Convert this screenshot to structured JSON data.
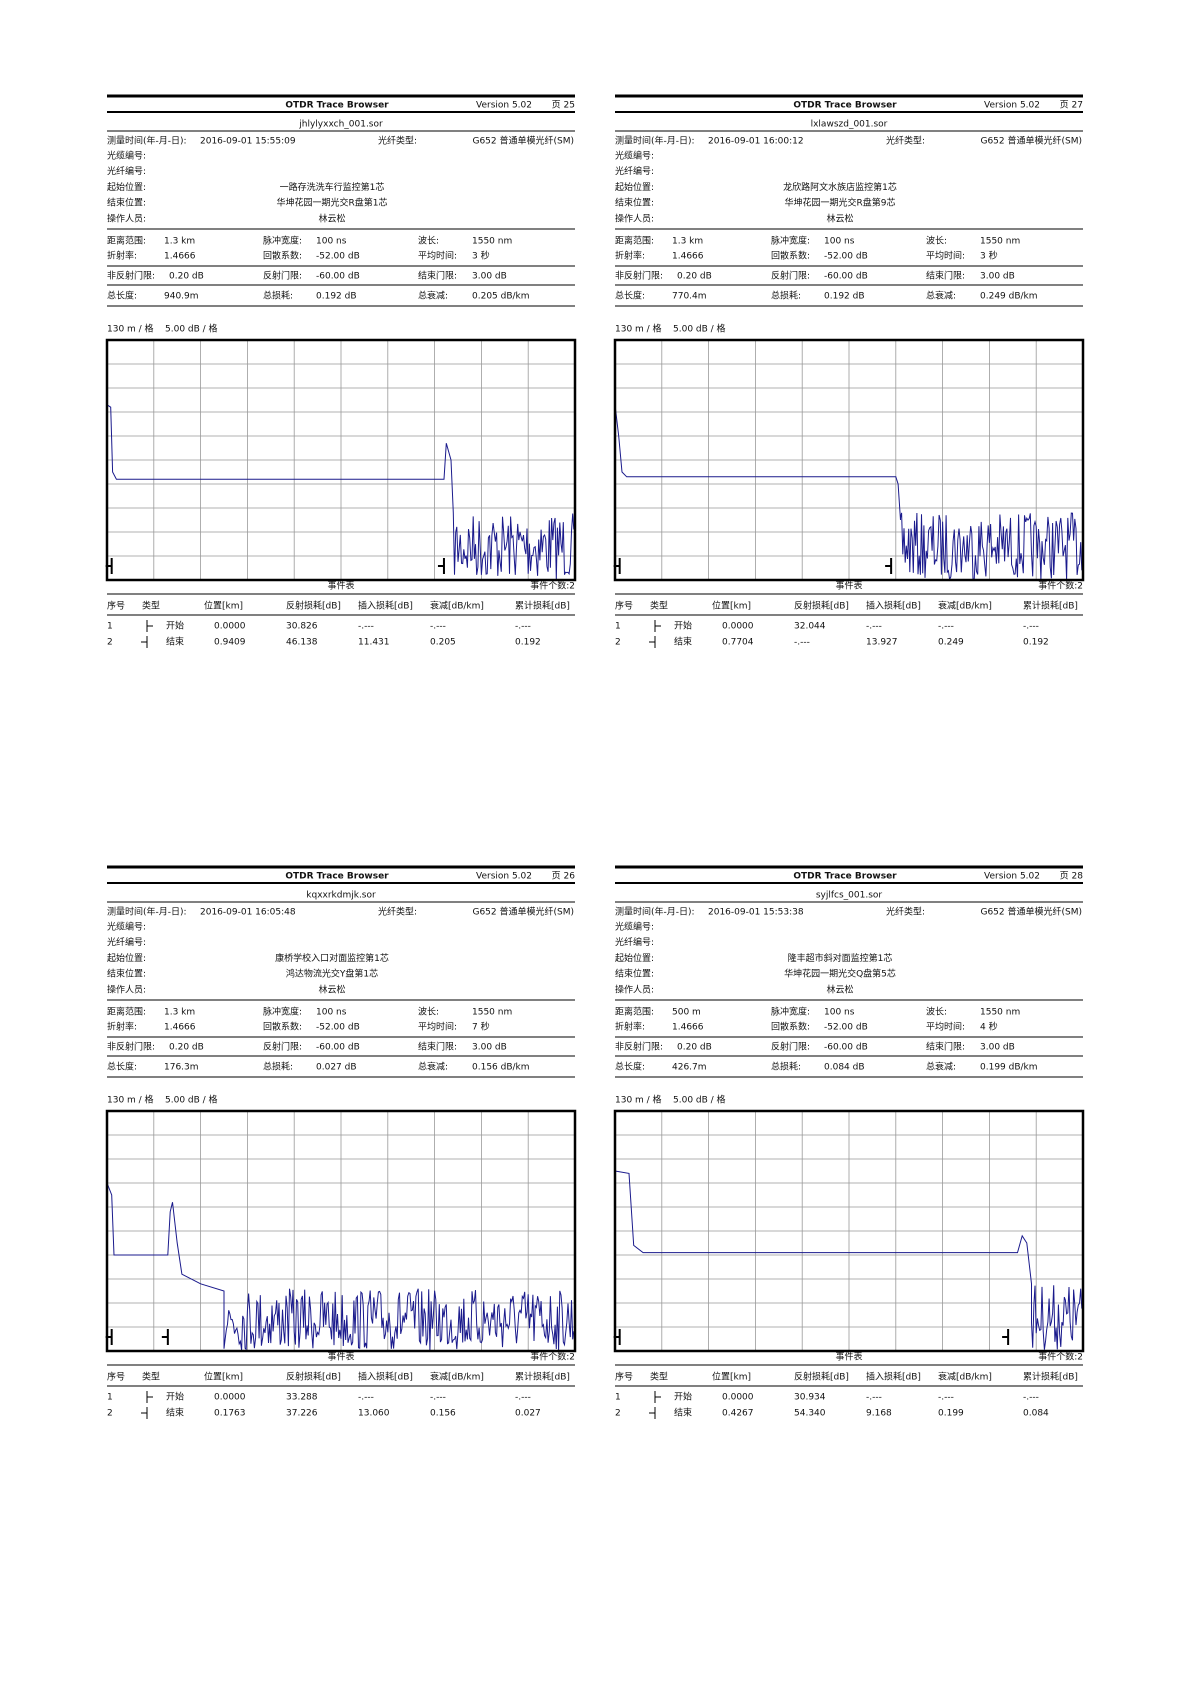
{
  "reports": [
    {
      "header": {
        "title": "OTDR Trace Browser",
        "version": "Version 5.02",
        "page": "页 25"
      },
      "file": "jhlylyxxch_001.sor",
      "meas": {
        "label": "测量时间(年-月-日):",
        "value": "2016-09-01  15:55:09"
      },
      "fiber": {
        "label": "光纤类型:",
        "value": "G652 普通单模光纤(SM)"
      },
      "fields": [
        {
          "label": "光缆编号:"
        },
        {
          "label": "光纤编号:"
        },
        {
          "label": "起始位置:",
          "value": "一路存洗洗车行监控第1芯"
        },
        {
          "label": "结束位置:",
          "value": "华坤花园一期光交R盘第1芯"
        },
        {
          "label": "操作人员:",
          "value": "林云松"
        }
      ],
      "params": [
        [
          [
            "距离范围:",
            "1.3 km"
          ],
          [
            "脉冲宽度:",
            "100 ns"
          ],
          [
            "波长:",
            "1550 nm"
          ]
        ],
        [
          [
            "折射率:",
            "1.4666"
          ],
          [
            "回散系数:",
            "-52.00 dB"
          ],
          [
            "平均时间:",
            "3 秒"
          ]
        ],
        [
          [
            "非反射门限:",
            "0.20 dB"
          ],
          [
            "反射门限:",
            "-60.00 dB"
          ],
          [
            "结束门限:",
            "3.00 dB"
          ]
        ],
        [
          [
            "总长度:",
            "940.9m"
          ],
          [
            "总损耗:",
            "0.192 dB"
          ],
          [
            "总衰减:",
            "0.205 dB/km"
          ]
        ]
      ],
      "scale": [
        "130 m / 格",
        "5.00 dB / 格"
      ],
      "events_title": "事件表",
      "events_count": "事件个数:2",
      "columns": [
        "序号",
        "类型",
        "位置[km]",
        "反射损耗[dB]",
        "插入损耗[dB]",
        "衰减[dB/km]",
        "累计损耗[dB]"
      ],
      "rows": [
        [
          "1",
          "开始",
          "0.0000",
          "30.826",
          "-.---",
          "-.---",
          "-.---"
        ],
        [
          "2",
          "结束",
          "0.9409",
          "46.138",
          "11.431",
          "0.205",
          "0.192"
        ]
      ]
    },
    {
      "header": {
        "title": "OTDR Trace Browser",
        "version": "Version 5.02",
        "page": "页 27"
      },
      "file": "lxlawszd_001.sor",
      "meas": {
        "label": "测量时间(年-月-日):",
        "value": "2016-09-01  16:00:12"
      },
      "fiber": {
        "label": "光纤类型:",
        "value": "G652 普通单模光纤(SM)"
      },
      "fields": [
        {
          "label": "光缆编号:"
        },
        {
          "label": "光纤编号:"
        },
        {
          "label": "起始位置:",
          "value": "龙欣路阿文水族店监控第1芯"
        },
        {
          "label": "结束位置:",
          "value": "华坤花园一期光交R盘第9芯"
        },
        {
          "label": "操作人员:",
          "value": "林云松"
        }
      ],
      "params": [
        [
          [
            "距离范围:",
            "1.3 km"
          ],
          [
            "脉冲宽度:",
            "100 ns"
          ],
          [
            "波长:",
            "1550 nm"
          ]
        ],
        [
          [
            "折射率:",
            "1.4666"
          ],
          [
            "回散系数:",
            "-52.00 dB"
          ],
          [
            "平均时间:",
            "3 秒"
          ]
        ],
        [
          [
            "非反射门限:",
            "0.20 dB"
          ],
          [
            "反射门限:",
            "-60.00 dB"
          ],
          [
            "结束门限:",
            "3.00 dB"
          ]
        ],
        [
          [
            "总长度:",
            "770.4m"
          ],
          [
            "总损耗:",
            "0.192 dB"
          ],
          [
            "总衰减:",
            "0.249 dB/km"
          ]
        ]
      ],
      "scale": [
        "130 m / 格",
        "5.00 dB / 格"
      ],
      "events_title": "事件表",
      "events_count": "事件个数:2",
      "columns": [
        "序号",
        "类型",
        "位置[km]",
        "反射损耗[dB]",
        "插入损耗[dB]",
        "衰减[dB/km]",
        "累计损耗[dB]"
      ],
      "rows": [
        [
          "1",
          "开始",
          "0.0000",
          "32.044",
          "-.---",
          "-.---",
          "-.---"
        ],
        [
          "2",
          "结束",
          "0.7704",
          "-.---",
          "13.927",
          "0.249",
          "0.192"
        ]
      ]
    },
    {
      "header": {
        "title": "OTDR Trace Browser",
        "version": "Version 5.02",
        "page": "页 26"
      },
      "file": "kqxxrkdmjk.sor",
      "meas": {
        "label": "测量时间(年-月-日):",
        "value": "2016-09-01  16:05:48"
      },
      "fiber": {
        "label": "光纤类型:",
        "value": "G652 普通单模光纤(SM)"
      },
      "fields": [
        {
          "label": "光缆编号:"
        },
        {
          "label": "光纤编号:"
        },
        {
          "label": "起始位置:",
          "value": "康桥学校入口对面监控第1芯"
        },
        {
          "label": "结束位置:",
          "value": "鸿达物流光交Y盘第1芯"
        },
        {
          "label": "操作人员:",
          "value": "林云松"
        }
      ],
      "params": [
        [
          [
            "距离范围:",
            "1.3 km"
          ],
          [
            "脉冲宽度:",
            "100 ns"
          ],
          [
            "波长:",
            "1550 nm"
          ]
        ],
        [
          [
            "折射率:",
            "1.4666"
          ],
          [
            "回散系数:",
            "-52.00 dB"
          ],
          [
            "平均时间:",
            "7 秒"
          ]
        ],
        [
          [
            "非反射门限:",
            "0.20 dB"
          ],
          [
            "反射门限:",
            "-60.00 dB"
          ],
          [
            "结束门限:",
            "3.00 dB"
          ]
        ],
        [
          [
            "总长度:",
            "176.3m"
          ],
          [
            "总损耗:",
            "0.027 dB"
          ],
          [
            "总衰减:",
            "0.156 dB/km"
          ]
        ]
      ],
      "scale": [
        "130 m / 格",
        "5.00 dB / 格"
      ],
      "events_title": "事件表",
      "events_count": "事件个数:2",
      "columns": [
        "序号",
        "类型",
        "位置[km]",
        "反射损耗[dB]",
        "插入损耗[dB]",
        "衰减[dB/km]",
        "累计损耗[dB]"
      ],
      "rows": [
        [
          "1",
          "开始",
          "0.0000",
          "33.288",
          "-.---",
          "-.---",
          "-.---"
        ],
        [
          "2",
          "结束",
          "0.1763",
          "37.226",
          "13.060",
          "0.156",
          "0.027"
        ]
      ]
    },
    {
      "header": {
        "title": "OTDR Trace Browser",
        "version": "Version 5.02",
        "page": "页 28"
      },
      "file": "syjlfcs_001.sor",
      "meas": {
        "label": "测量时间(年-月-日):",
        "value": "2016-09-01  15:53:38"
      },
      "fiber": {
        "label": "光纤类型:",
        "value": "G652 普通单模光纤(SM)"
      },
      "fields": [
        {
          "label": "光缆编号:"
        },
        {
          "label": "光纤编号:"
        },
        {
          "label": "起始位置:",
          "value": "隆丰超市斜对面监控第1芯"
        },
        {
          "label": "结束位置:",
          "value": "华坤花园一期光交Q盘第5芯"
        },
        {
          "label": "操作人员:",
          "value": "林云松"
        }
      ],
      "params": [
        [
          [
            "距离范围:",
            "500 m"
          ],
          [
            "脉冲宽度:",
            "100 ns"
          ],
          [
            "波长:",
            "1550 nm"
          ]
        ],
        [
          [
            "折射率:",
            "1.4666"
          ],
          [
            "回散系数:",
            "-52.00 dB"
          ],
          [
            "平均时间:",
            "4 秒"
          ]
        ],
        [
          [
            "非反射门限:",
            "0.20 dB"
          ],
          [
            "反射门限:",
            "-60.00 dB"
          ],
          [
            "结束门限:",
            "3.00 dB"
          ]
        ],
        [
          [
            "总长度:",
            "426.7m"
          ],
          [
            "总损耗:",
            "0.084 dB"
          ],
          [
            "总衰减:",
            "0.199 dB/km"
          ]
        ]
      ],
      "scale": [
        "130 m / 格",
        "5.00 dB / 格"
      ],
      "events_title": "事件表",
      "events_count": "事件个数:2",
      "columns": [
        "序号",
        "类型",
        "位置[km]",
        "反射损耗[dB]",
        "插入损耗[dB]",
        "衰减[dB/km]",
        "累计损耗[dB]"
      ],
      "rows": [
        [
          "1",
          "开始",
          "0.0000",
          "30.934",
          "-.---",
          "-.---",
          "-.---"
        ],
        [
          "2",
          "结束",
          "0.4267",
          "54.340",
          "9.168",
          "0.199",
          "0.084"
        ]
      ]
    }
  ]
}
